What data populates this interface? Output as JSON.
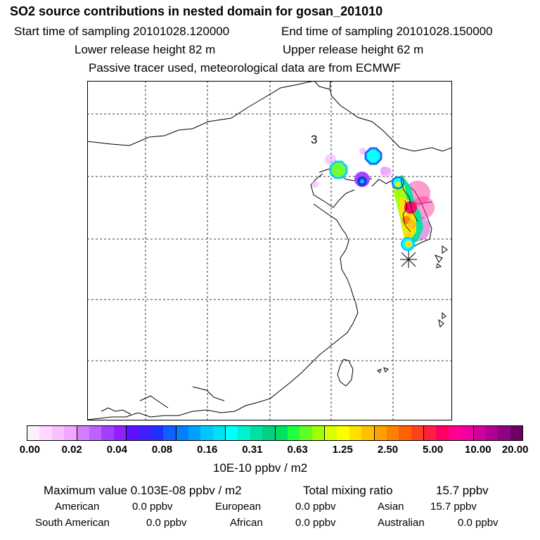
{
  "header": {
    "title": "SO2 source contributions in nested domain for gosan_201010",
    "start_time": "Start time of sampling 20101028.120000",
    "end_time": "End time of sampling 20101028.150000",
    "lower_release": "Lower release height   82 m",
    "upper_release": "Upper release height   62 m",
    "tracer_note": "Passive tracer used, meteorological data are from ECMWF"
  },
  "map": {
    "day_label": "3"
  },
  "colorbar": {
    "tick_labels": [
      "0.00",
      "0.02",
      "0.04",
      "0.08",
      "0.16",
      "0.31",
      "0.63",
      "1.25",
      "2.50",
      "5.00",
      "10.00",
      "20.00"
    ],
    "unit": "10E-10 ppbv / m2",
    "colors": [
      "#fff0ff",
      "#ffd8ff",
      "#f8c0ff",
      "#f0a8ff",
      "#d080ff",
      "#c060ff",
      "#a040ff",
      "#9020ff",
      "#6010ff",
      "#4020ff",
      "#2030ff",
      "#1060ff",
      "#0080ff",
      "#00a0ff",
      "#00c8ff",
      "#00e0f0",
      "#00ffff",
      "#00f0d0",
      "#00e0a0",
      "#00d080",
      "#00e060",
      "#20ff40",
      "#60ff20",
      "#a0ff00",
      "#d8ff00",
      "#ffff00",
      "#ffe000",
      "#ffc000",
      "#ffa000",
      "#ff8000",
      "#ff6000",
      "#ff4020",
      "#ff2040",
      "#ff0060",
      "#ff0090",
      "#f000a0",
      "#d000a0",
      "#b00090",
      "#900080",
      "#700060"
    ]
  },
  "stats": {
    "max_label": "Maximum value  0.103E-08 ppbv / m2",
    "total_label": "Total mixing ratio",
    "total_value": "15.7 ppbv",
    "american_label": "American",
    "american_value": "0.0 ppbv",
    "european_label": "European",
    "european_value": "0.0 ppbv",
    "asian_label": "Asian",
    "asian_value": "15.7 ppbv",
    "south_american_label": "South American",
    "south_american_value": "0.0 ppbv",
    "african_label": "African",
    "african_value": "0.0 ppbv",
    "australian_label": "Australian",
    "australian_value": "0.0 ppbv"
  }
}
